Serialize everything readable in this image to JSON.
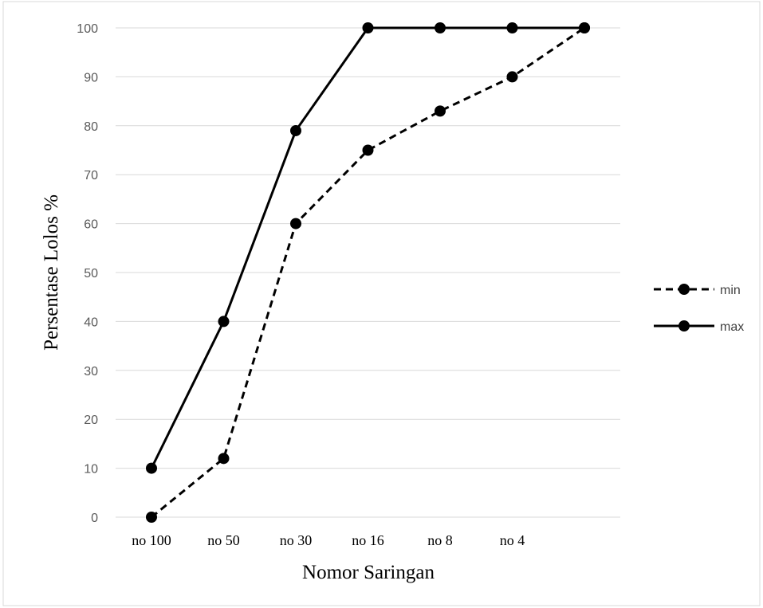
{
  "chart_data": {
    "type": "line",
    "title": "",
    "xlabel": "Nomor Saringan",
    "ylabel": "Persentase Lolos %",
    "categories": [
      "no 100",
      "no 50",
      "no 30",
      "no 16",
      "no 8",
      "no 4",
      ""
    ],
    "ylim": [
      0,
      100
    ],
    "yticks": [
      0,
      10,
      20,
      30,
      40,
      50,
      60,
      70,
      80,
      90,
      100
    ],
    "grid": true,
    "legend_position": "right",
    "series": [
      {
        "name": "min",
        "style": "dashed",
        "color": "#000000",
        "values": [
          0,
          12,
          60,
          75,
          83,
          90,
          100
        ]
      },
      {
        "name": "max",
        "style": "solid",
        "color": "#000000",
        "values": [
          10,
          40,
          79,
          100,
          100,
          100,
          100
        ]
      }
    ]
  }
}
